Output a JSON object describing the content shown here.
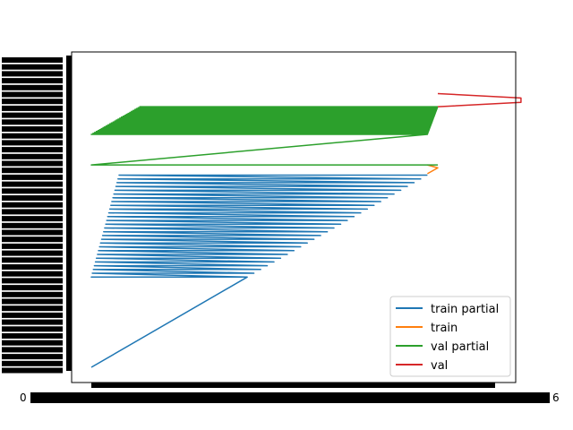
{
  "chart_data": {
    "type": "line",
    "title": "",
    "xlabel": "",
    "ylabel": "",
    "grid": false,
    "legend_position": "bottom-right",
    "note": "Tick labels on both axes overlap into unreadable solid black bars (many categorical ticks).",
    "x_ticks": [
      "0",
      "6"
    ],
    "series": [
      {
        "name": "train partial",
        "color": "#1f77b4",
        "pattern": "diagonal ramp from bottom-left to upper-right, followed by many horizontal sweeps stepping upward",
        "start": [
          0.0,
          0.0
        ],
        "ramp_end": [
          0.45,
          0.31
        ],
        "sweeps": 28,
        "sweep_left": [
          0.0,
          0.08
        ],
        "sweep_right": [
          0.45,
          0.97
        ],
        "y_low": 0.31,
        "y_high": 0.66
      },
      {
        "name": "train",
        "color": "#ff7f0e",
        "pattern": "short zigzag near right end",
        "points": [
          [
            0.97,
            0.665
          ],
          [
            1.0,
            0.685
          ],
          [
            0.97,
            0.695
          ]
        ]
      },
      {
        "name": "val partial",
        "color": "#2ca02c",
        "pattern": "horizontal line, diagonal, then dense band of horizontal sweeps",
        "start": [
          1.0,
          0.695
        ],
        "flat_end": [
          0.0,
          0.695
        ],
        "ramp_end": [
          0.97,
          0.8
        ],
        "sweeps": 30,
        "sweep_left": [
          0.0,
          0.14
        ],
        "sweep_right": [
          0.97,
          1.0
        ],
        "y_low": 0.8,
        "y_high": 0.895
      },
      {
        "name": "val",
        "color": "#d62728",
        "pattern": "short zigzag at top-right",
        "points": [
          [
            1.0,
            0.895
          ],
          [
            1.24,
            0.91
          ],
          [
            1.24,
            0.925
          ],
          [
            1.0,
            0.94
          ]
        ]
      }
    ]
  }
}
